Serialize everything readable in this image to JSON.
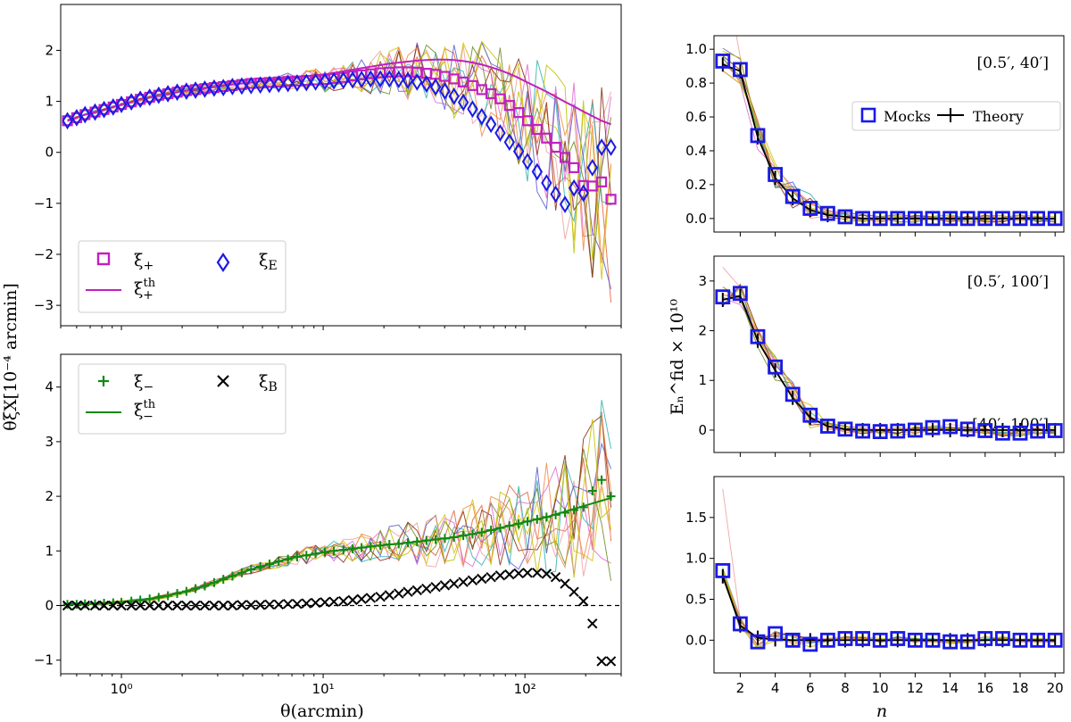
{
  "colors": {
    "plus": "#c020c0",
    "E": "#1a1ae6",
    "minus": "#118811",
    "B": "#000000",
    "mocks": "#1a1ae6",
    "theory": "#000000",
    "noise": [
      "#e0603a",
      "#f0a0a0",
      "#e06ad0",
      "#d6c000",
      "#2fb0b0",
      "#5a5ad0",
      "#6a8a20",
      "#8a2a10",
      "#f08a40",
      "#c0c000"
    ]
  },
  "shared_labels": {
    "left_ylabel": "θξX[10⁻⁴ arcmin]",
    "left_xlabel": "θ(arcmin)",
    "right_ylabel": "Eₙ^fid × 10¹⁰",
    "right_xlabel": "n"
  },
  "chart_data": [
    {
      "id": "top_left",
      "type": "scatter",
      "xscale": "log",
      "xlim": [
        0.5,
        300
      ],
      "ylim": [
        -3.4,
        2.9
      ],
      "yticks": [
        -3,
        -2,
        -1,
        0,
        1,
        2
      ],
      "xticks": [
        1,
        10,
        100
      ],
      "xtick_labels": [
        "",
        "",
        ""
      ],
      "legend": {
        "placement": "lower-left",
        "entries": [
          "ξ+",
          "ξth+",
          "ξE"
        ]
      },
      "x": [
        0.54,
        0.6,
        0.66,
        0.74,
        0.82,
        0.91,
        1.0,
        1.12,
        1.24,
        1.38,
        1.53,
        1.7,
        1.89,
        2.1,
        2.33,
        2.59,
        2.88,
        3.2,
        3.55,
        3.95,
        4.39,
        4.88,
        5.42,
        6.02,
        6.69,
        7.43,
        8.26,
        9.17,
        10.2,
        11.3,
        12.6,
        14.0,
        15.5,
        17.2,
        19.2,
        21.3,
        23.7,
        26.3,
        29.2,
        32.5,
        36.1,
        40.1,
        44.5,
        49.5,
        55.0,
        61.1,
        67.9,
        75.4,
        83.8,
        93.1,
        103,
        115,
        128,
        142,
        158,
        175,
        195,
        216,
        240,
        267
      ],
      "series": [
        {
          "name": "ξ+",
          "marker": "square",
          "values": [
            0.62,
            0.68,
            0.74,
            0.79,
            0.84,
            0.89,
            0.94,
            0.99,
            1.04,
            1.08,
            1.12,
            1.15,
            1.18,
            1.21,
            1.23,
            1.25,
            1.27,
            1.29,
            1.31,
            1.33,
            1.35,
            1.36,
            1.37,
            1.38,
            1.39,
            1.4,
            1.41,
            1.42,
            1.43,
            1.45,
            1.47,
            1.5,
            1.52,
            1.54,
            1.56,
            1.57,
            1.58,
            1.58,
            1.57,
            1.55,
            1.53,
            1.49,
            1.44,
            1.38,
            1.31,
            1.23,
            1.15,
            1.05,
            0.92,
            0.78,
            0.62,
            0.45,
            0.28,
            0.1,
            -0.1,
            -0.3,
            -0.65,
            -0.66,
            -0.58,
            -0.92
          ]
        },
        {
          "name": "ξE",
          "marker": "diamond",
          "values": [
            0.62,
            0.68,
            0.74,
            0.79,
            0.84,
            0.89,
            0.94,
            0.99,
            1.04,
            1.08,
            1.12,
            1.15,
            1.18,
            1.2,
            1.22,
            1.24,
            1.26,
            1.27,
            1.29,
            1.3,
            1.31,
            1.32,
            1.33,
            1.34,
            1.35,
            1.36,
            1.37,
            1.38,
            1.39,
            1.4,
            1.41,
            1.42,
            1.43,
            1.44,
            1.44,
            1.44,
            1.43,
            1.41,
            1.38,
            1.34,
            1.28,
            1.2,
            1.1,
            0.98,
            0.85,
            0.7,
            0.55,
            0.38,
            0.2,
            0.02,
            -0.18,
            -0.38,
            -0.6,
            -0.82,
            -1.02,
            -0.7,
            -0.8,
            -0.3,
            0.1,
            0.1
          ]
        },
        {
          "name": "ξth+",
          "style": "line",
          "values": [
            0.62,
            0.68,
            0.74,
            0.79,
            0.84,
            0.89,
            0.94,
            0.99,
            1.04,
            1.08,
            1.12,
            1.15,
            1.18,
            1.21,
            1.24,
            1.26,
            1.28,
            1.31,
            1.33,
            1.35,
            1.37,
            1.39,
            1.41,
            1.43,
            1.45,
            1.47,
            1.49,
            1.51,
            1.53,
            1.56,
            1.59,
            1.62,
            1.65,
            1.68,
            1.71,
            1.74,
            1.76,
            1.78,
            1.8,
            1.81,
            1.82,
            1.82,
            1.81,
            1.79,
            1.76,
            1.72,
            1.67,
            1.61,
            1.54,
            1.46,
            1.37,
            1.28,
            1.19,
            1.09,
            0.99,
            0.9,
            0.8,
            0.71,
            0.62,
            0.55
          ]
        }
      ]
    },
    {
      "id": "bottom_left",
      "type": "scatter",
      "xscale": "log",
      "xlim": [
        0.5,
        300
      ],
      "ylim": [
        -1.25,
        4.6
      ],
      "yticks": [
        -1,
        0,
        1,
        2,
        3,
        4
      ],
      "xticks": [
        1,
        10,
        100
      ],
      "xtick_labels": [
        "10⁰",
        "10¹",
        "10²"
      ],
      "zero_line": true,
      "legend": {
        "placement": "upper-left",
        "entries": [
          "ξ−",
          "ξth−",
          "ξB"
        ]
      },
      "x": [
        0.54,
        0.6,
        0.66,
        0.74,
        0.82,
        0.91,
        1.0,
        1.12,
        1.24,
        1.38,
        1.53,
        1.7,
        1.89,
        2.1,
        2.33,
        2.59,
        2.88,
        3.2,
        3.55,
        3.95,
        4.39,
        4.88,
        5.42,
        6.02,
        6.69,
        7.43,
        8.26,
        9.17,
        10.2,
        11.3,
        12.6,
        14.0,
        15.5,
        17.2,
        19.2,
        21.3,
        23.7,
        26.3,
        29.2,
        32.5,
        36.1,
        40.1,
        44.5,
        49.5,
        55.0,
        61.1,
        67.9,
        75.4,
        83.8,
        93.1,
        103,
        115,
        128,
        142,
        158,
        175,
        195,
        216,
        240,
        267
      ],
      "series": [
        {
          "name": "ξ−",
          "marker": "plus",
          "values": [
            0.02,
            0.02,
            0.03,
            0.03,
            0.04,
            0.05,
            0.06,
            0.08,
            0.1,
            0.12,
            0.15,
            0.18,
            0.22,
            0.26,
            0.31,
            0.36,
            0.42,
            0.48,
            0.54,
            0.6,
            0.66,
            0.71,
            0.76,
            0.81,
            0.85,
            0.89,
            0.92,
            0.95,
            0.98,
            1.0,
            1.02,
            1.04,
            1.06,
            1.08,
            1.1,
            1.12,
            1.13,
            1.15,
            1.17,
            1.19,
            1.21,
            1.23,
            1.25,
            1.28,
            1.31,
            1.34,
            1.38,
            1.42,
            1.46,
            1.5,
            1.54,
            1.58,
            1.62,
            1.66,
            1.7,
            1.75,
            1.8,
            2.1,
            2.3,
            2.0
          ]
        },
        {
          "name": "ξB",
          "marker": "x",
          "values": [
            0.0,
            0.0,
            0.0,
            0.0,
            0.0,
            0.0,
            0.0,
            0.0,
            0.0,
            0.0,
            0.0,
            0.0,
            0.0,
            0.0,
            0.0,
            0.0,
            0.0,
            0.0,
            0.0,
            0.01,
            0.01,
            0.01,
            0.02,
            0.02,
            0.03,
            0.03,
            0.04,
            0.05,
            0.06,
            0.07,
            0.08,
            0.1,
            0.12,
            0.14,
            0.16,
            0.19,
            0.22,
            0.25,
            0.28,
            0.31,
            0.34,
            0.37,
            0.4,
            0.43,
            0.46,
            0.49,
            0.52,
            0.55,
            0.57,
            0.59,
            0.6,
            0.6,
            0.58,
            0.52,
            0.4,
            0.25,
            0.08,
            -0.33,
            -1.02,
            -1.02
          ]
        },
        {
          "name": "ξth−",
          "style": "line",
          "values": [
            0.02,
            0.02,
            0.03,
            0.03,
            0.04,
            0.05,
            0.06,
            0.08,
            0.1,
            0.12,
            0.15,
            0.18,
            0.22,
            0.26,
            0.31,
            0.36,
            0.42,
            0.48,
            0.54,
            0.6,
            0.66,
            0.71,
            0.76,
            0.81,
            0.85,
            0.89,
            0.92,
            0.95,
            0.98,
            1.0,
            1.02,
            1.04,
            1.06,
            1.08,
            1.1,
            1.12,
            1.13,
            1.15,
            1.17,
            1.19,
            1.21,
            1.23,
            1.25,
            1.28,
            1.31,
            1.34,
            1.38,
            1.42,
            1.46,
            1.5,
            1.54,
            1.58,
            1.62,
            1.67,
            1.72,
            1.77,
            1.82,
            1.87,
            1.92,
            1.97
          ]
        }
      ]
    },
    {
      "id": "right_top",
      "type": "scatter",
      "range_label": "[0.5′, 40′]",
      "xlim": [
        0.5,
        20.5
      ],
      "ylim": [
        -0.08,
        1.08
      ],
      "yticks": [
        0.0,
        0.2,
        0.4,
        0.6,
        0.8,
        1.0
      ],
      "ytick_labels": [
        "0.0",
        "0.2",
        "0.4",
        "0.6",
        "0.8",
        "1.0"
      ],
      "xticks": [
        2,
        4,
        6,
        8,
        10,
        12,
        14,
        16,
        18,
        20
      ],
      "legend": {
        "placement": "center-right",
        "entries": [
          "Mocks",
          "Theory"
        ]
      },
      "x": [
        1,
        2,
        3,
        4,
        5,
        6,
        7,
        8,
        9,
        10,
        11,
        12,
        13,
        14,
        15,
        16,
        17,
        18,
        19,
        20
      ],
      "series": [
        {
          "name": "Mocks",
          "marker": "square",
          "values": [
            0.93,
            0.88,
            0.49,
            0.26,
            0.13,
            0.06,
            0.03,
            0.01,
            0.0,
            0.0,
            0.0,
            0.0,
            0.0,
            0.0,
            0.0,
            0.0,
            0.0,
            0.0,
            0.0,
            0.0
          ]
        },
        {
          "name": "Theory",
          "style": "errorline",
          "values": [
            0.91,
            0.87,
            0.48,
            0.24,
            0.12,
            0.05,
            0.02,
            0.01,
            0.0,
            0.0,
            0.0,
            0.0,
            0.0,
            0.0,
            0.0,
            0.0,
            0.0,
            0.0,
            0.0,
            0.0
          ]
        }
      ]
    },
    {
      "id": "right_mid",
      "type": "scatter",
      "range_label": "[0.5′, 100′]",
      "xlim": [
        0.5,
        20.5
      ],
      "ylim": [
        -0.45,
        3.5
      ],
      "yticks": [
        0,
        1,
        2,
        3
      ],
      "ytick_labels": [
        "0",
        "1",
        "2",
        "3"
      ],
      "xticks": [
        2,
        4,
        6,
        8,
        10,
        12,
        14,
        16,
        18,
        20
      ],
      "x": [
        1,
        2,
        3,
        4,
        5,
        6,
        7,
        8,
        9,
        10,
        11,
        12,
        13,
        14,
        15,
        16,
        17,
        18,
        19,
        20
      ],
      "series": [
        {
          "name": "Mocks",
          "marker": "square",
          "values": [
            2.68,
            2.75,
            1.88,
            1.27,
            0.72,
            0.3,
            0.08,
            0.02,
            -0.02,
            -0.03,
            -0.02,
            0.0,
            0.05,
            0.07,
            0.02,
            -0.01,
            -0.06,
            -0.06,
            -0.02,
            -0.01
          ]
        },
        {
          "name": "Theory",
          "style": "errorline",
          "values": [
            2.62,
            2.7,
            1.8,
            1.2,
            0.65,
            0.25,
            0.08,
            0.02,
            0.0,
            0.0,
            0.0,
            0.0,
            0.0,
            0.0,
            0.0,
            0.0,
            0.0,
            0.0,
            0.0,
            0.0
          ]
        }
      ]
    },
    {
      "id": "right_bottom",
      "type": "scatter",
      "range_label": "[40′, 100′]",
      "xlim": [
        0.5,
        20.5
      ],
      "ylim": [
        -0.4,
        2.0
      ],
      "yticks": [
        0.0,
        0.5,
        1.0,
        1.5
      ],
      "ytick_labels": [
        "0.0",
        "0.5",
        "1.0",
        "1.5"
      ],
      "xticks": [
        2,
        4,
        6,
        8,
        10,
        12,
        14,
        16,
        18,
        20
      ],
      "xtick_labels": [
        "2",
        "4",
        "6",
        "8",
        "10",
        "12",
        "14",
        "16",
        "18",
        "20"
      ],
      "x": [
        1,
        2,
        3,
        4,
        5,
        6,
        7,
        8,
        9,
        10,
        11,
        12,
        13,
        14,
        15,
        16,
        17,
        18,
        19,
        20
      ],
      "series": [
        {
          "name": "Mocks",
          "marker": "square",
          "values": [
            0.85,
            0.2,
            -0.02,
            0.08,
            0.0,
            -0.05,
            0.0,
            0.02,
            0.02,
            0.0,
            0.02,
            0.0,
            0.0,
            -0.02,
            -0.02,
            0.02,
            0.02,
            0.0,
            0.0,
            0.0
          ]
        },
        {
          "name": "Theory",
          "style": "errorline",
          "values": [
            0.78,
            0.18,
            0.03,
            0.01,
            0.0,
            0.0,
            0.0,
            0.0,
            0.0,
            0.0,
            0.0,
            0.0,
            0.0,
            0.0,
            0.0,
            0.0,
            0.0,
            0.0,
            0.0,
            0.0
          ]
        }
      ]
    }
  ]
}
